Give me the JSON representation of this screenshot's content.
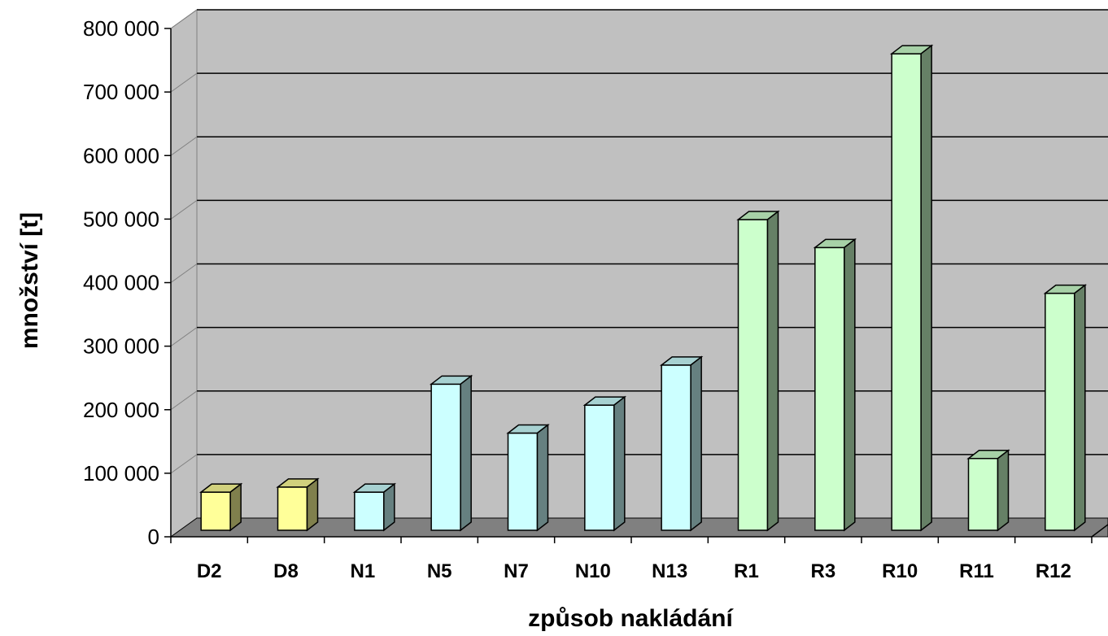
{
  "chart_data": {
    "type": "bar",
    "title": "",
    "xlabel": "způsob nakládání",
    "ylabel": "množství [t]",
    "ylim": [
      0,
      800000
    ],
    "yticks": [
      0,
      100000,
      200000,
      300000,
      400000,
      500000,
      600000,
      700000,
      800000
    ],
    "ytick_labels": [
      "0",
      "100 000",
      "200 000",
      "300 000",
      "400 000",
      "500 000",
      "600 000",
      "700 000",
      "800 000"
    ],
    "categories": [
      "D2",
      "D8",
      "N1",
      "N5",
      "N7",
      "N10",
      "N13",
      "R1",
      "R3",
      "R10",
      "R11",
      "R12"
    ],
    "values": [
      60000,
      68000,
      60000,
      230000,
      153000,
      197000,
      260000,
      489000,
      445000,
      750000,
      113000,
      373000
    ],
    "bar_colors": [
      "#ffff99",
      "#ffff99",
      "#ccffff",
      "#ccffff",
      "#ccffff",
      "#ccffff",
      "#ccffff",
      "#ccffcc",
      "#ccffcc",
      "#ccffcc",
      "#ccffcc",
      "#ccffcc"
    ],
    "plot_background": "#c0c0c0",
    "floor_color": "#808080",
    "grid": true,
    "three_d": true
  }
}
